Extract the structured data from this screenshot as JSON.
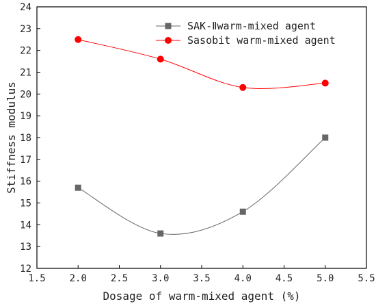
{
  "chart_data": {
    "type": "line",
    "xlabel": "Dosage of warm-mixed agent (%)",
    "ylabel": "Stiffness modulus",
    "xlim": [
      1.5,
      5.5
    ],
    "ylim": [
      12,
      24
    ],
    "xticks": [
      "1.5",
      "2.0",
      "2.5",
      "3.0",
      "3.5",
      "4.0",
      "4.5",
      "5.0",
      "5.5"
    ],
    "xtick_values": [
      1.5,
      2.0,
      2.5,
      3.0,
      3.5,
      4.0,
      4.5,
      5.0,
      5.5
    ],
    "yticks": [
      "12",
      "13",
      "14",
      "15",
      "16",
      "17",
      "18",
      "19",
      "20",
      "21",
      "22",
      "23",
      "24"
    ],
    "ytick_values": [
      12,
      13,
      14,
      15,
      16,
      17,
      18,
      19,
      20,
      21,
      22,
      23,
      24
    ],
    "grid": false,
    "legend_position": "top-right",
    "x": [
      2.0,
      3.0,
      4.0,
      5.0
    ],
    "series": [
      {
        "name": "SAK-Ⅱwarm-mixed agent",
        "marker": "square",
        "color": "#666666",
        "values": [
          15.7,
          13.6,
          14.6,
          18.0
        ]
      },
      {
        "name": "Sasobit warm-mixed agent",
        "marker": "circle",
        "color": "#ff0000",
        "values": [
          22.5,
          21.6,
          20.3,
          20.5
        ]
      }
    ]
  }
}
